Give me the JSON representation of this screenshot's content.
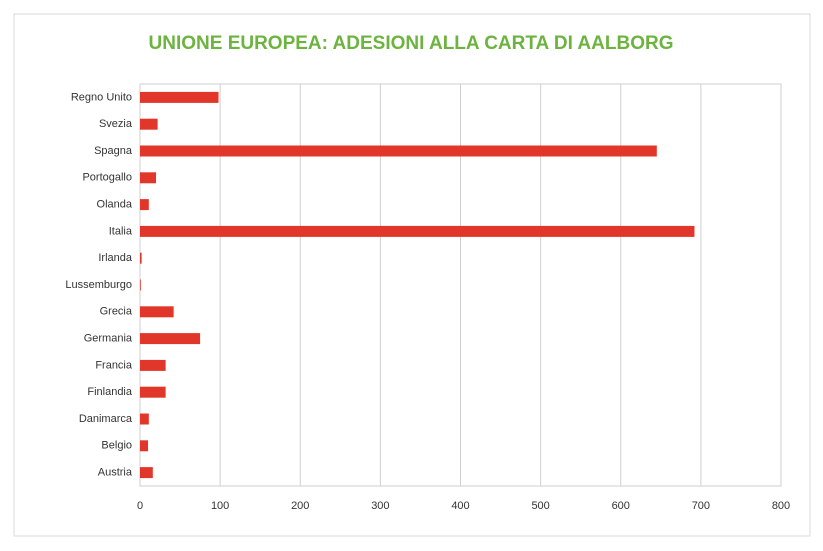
{
  "chart_data": {
    "type": "bar",
    "orientation": "horizontal",
    "title": "UNIONE EUROPEA: ADESIONI ALLA CARTA DI AALBORG",
    "categories": [
      "Regno Unito",
      "Svezia",
      "Spagna",
      "Portogallo",
      "Olanda",
      "Italia",
      "Irlanda",
      "Lussemburgo",
      "Grecia",
      "Germania",
      "Francia",
      "Finlandia",
      "Danimarca",
      "Belgio",
      "Austria"
    ],
    "values": [
      98,
      22,
      645,
      20,
      11,
      692,
      2,
      1,
      42,
      75,
      32,
      32,
      11,
      10,
      16
    ],
    "color": "#e1372a",
    "xlim": [
      0,
      800
    ],
    "xticks": [
      0,
      100,
      200,
      300,
      400,
      500,
      600,
      700,
      800
    ],
    "grid": true
  }
}
